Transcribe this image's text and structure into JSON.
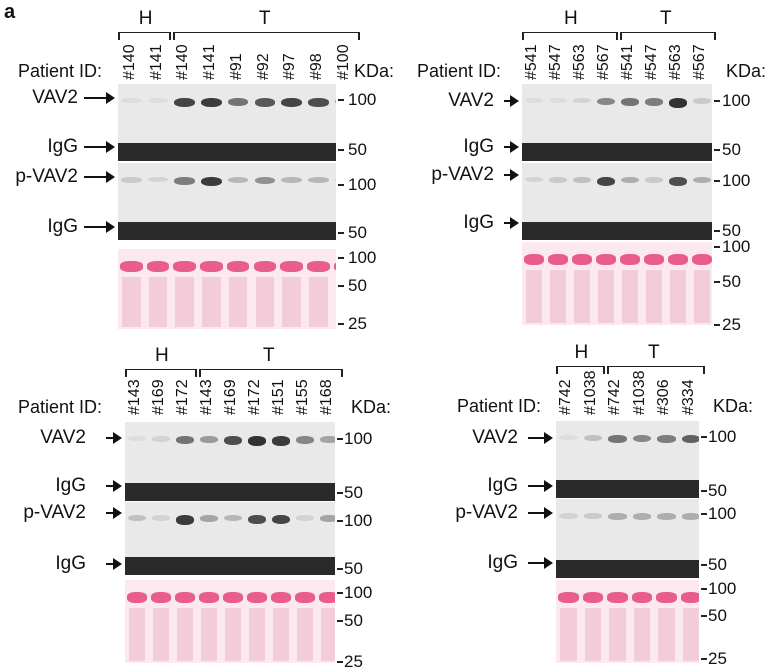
{
  "figure_label": "a",
  "panels": [
    {
      "groups": [
        "H",
        "T"
      ],
      "patient_label": "Patient ID:",
      "kda_label": "KDa:",
      "lanes": [
        "#140",
        "#141",
        "#140",
        "#141",
        "#91",
        "#92",
        "#97",
        "#98",
        "#100"
      ],
      "rows": [
        "VAV2",
        "IgG",
        "p-VAV2",
        "IgG"
      ],
      "mw_blot": [
        "100",
        "50",
        "100",
        "50"
      ],
      "mw_ponceau": [
        "100",
        "50",
        "25"
      ]
    },
    {
      "groups": [
        "H",
        "T"
      ],
      "patient_label": "Patient ID:",
      "kda_label": "KDa:",
      "lanes": [
        "#541",
        "#547",
        "#563",
        "#567",
        "#541",
        "#547",
        "#563",
        "#567"
      ],
      "rows": [
        "VAV2",
        "IgG",
        "p-VAV2",
        "IgG"
      ],
      "mw_blot": [
        "100",
        "50",
        "100",
        "50"
      ],
      "mw_ponceau": [
        "100",
        "50",
        "25"
      ]
    },
    {
      "groups": [
        "H",
        "T"
      ],
      "patient_label": "Patient ID:",
      "kda_label": "KDa:",
      "lanes": [
        "#143",
        "#169",
        "#172",
        "#143",
        "#169",
        "#172",
        "#151",
        "#155",
        "#168"
      ],
      "rows": [
        "VAV2",
        "IgG",
        "p-VAV2",
        "IgG"
      ],
      "mw_blot": [
        "100",
        "50",
        "100",
        "50"
      ],
      "mw_ponceau": [
        "100",
        "50",
        "25"
      ]
    },
    {
      "groups": [
        "H",
        "T"
      ],
      "patient_label": "Patient ID:",
      "kda_label": "KDa:",
      "lanes": [
        "#742",
        "#1038",
        "#742",
        "#1038",
        "#306",
        "#334"
      ],
      "rows": [
        "VAV2",
        "IgG",
        "p-VAV2",
        "IgG"
      ],
      "mw_blot": [
        "100",
        "50",
        "100",
        "50"
      ],
      "mw_ponceau": [
        "100",
        "50",
        "25"
      ]
    }
  ]
}
